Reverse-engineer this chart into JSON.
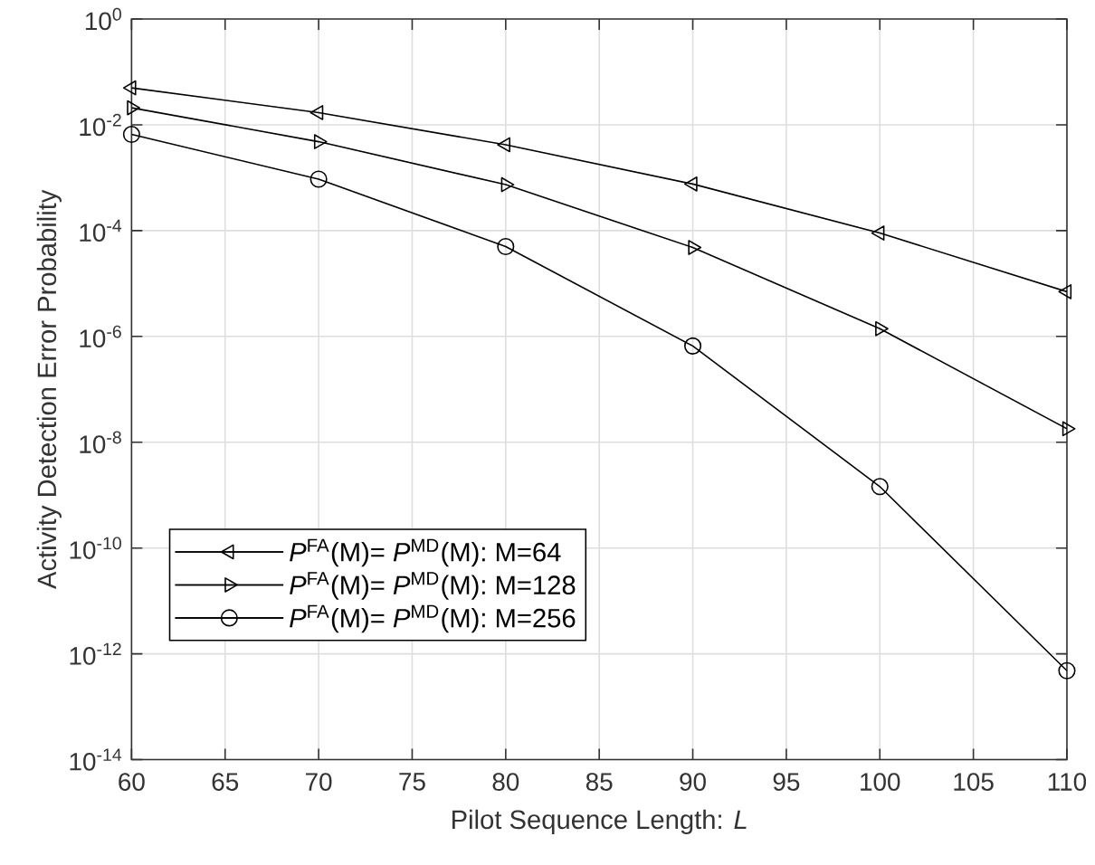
{
  "chart_data": {
    "type": "line",
    "xlabel": "Pilot Sequence Length:  *L*",
    "ylabel": "Activity Detection Error Probability",
    "x": [
      60,
      70,
      80,
      90,
      100,
      110
    ],
    "series": [
      {
        "name": "*P*$^{FA}$(M)= *P*$^{MD}$(M): M=64",
        "color": "#000000",
        "marker": "triangle-left",
        "values": [
          0.05,
          0.017,
          0.0042,
          0.00076,
          9e-05,
          7e-06
        ]
      },
      {
        "name": "*P*$^{FA}$(M)= *P*$^{MD}$(M): M=128",
        "color": "#000000",
        "marker": "triangle-right",
        "values": [
          0.021,
          0.0048,
          0.00074,
          4.8e-05,
          1.4e-06,
          1.8e-08
        ]
      },
      {
        "name": "*P*$^{FA}$(M)= *P*$^{MD}$(M): M=256",
        "color": "#000000",
        "marker": "circle",
        "values": [
          0.0066,
          0.00094,
          5e-05,
          6.6e-07,
          1.45e-09,
          4.8e-13
        ]
      }
    ],
    "log": "y",
    "grid": true,
    "legend": "bottom left",
    "line_style": "solid",
    "xlim": [
      60,
      110
    ],
    "xticks": [
      60,
      65,
      70,
      75,
      80,
      85,
      90,
      95,
      100,
      105,
      110
    ],
    "ylim": [
      1e-14,
      1
    ],
    "yticks": [
      {
        "value": 1e-14,
        "label": "10$^{-14}$"
      },
      {
        "value": 1e-12,
        "label": "10$^{-12}$"
      },
      {
        "value": 1e-10,
        "label": "10$^{-10}$"
      },
      {
        "value": 1e-08,
        "label": "10$^{-8}$"
      },
      {
        "value": 1e-06,
        "label": "10$^{-6}$"
      },
      {
        "value": 0.0001,
        "label": "10$^{-4}$"
      },
      {
        "value": 0.01,
        "label": "10$^{-2}$"
      },
      {
        "value": 1,
        "label": "10$^{0}$"
      }
    ]
  }
}
